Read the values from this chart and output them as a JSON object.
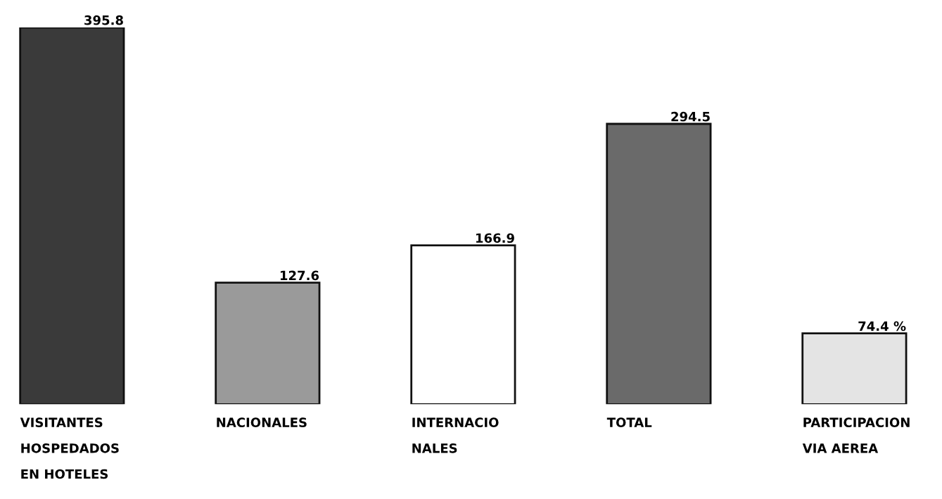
{
  "chart_data": {
    "type": "bar",
    "categories": [
      "VISITANTES\nHOSPEDADOS\nEN HOTELES",
      "NACIONALES",
      "INTERNACIO\nNALES",
      "TOTAL",
      "PARTICIPACION\nVIA AEREA"
    ],
    "values": [
      395.8,
      127.6,
      166.9,
      294.5,
      74.4
    ],
    "colors": [
      "#3a3a3a",
      "#9a9a9a",
      "#ffffff",
      "#6a6a6a",
      "#e4e4e4"
    ],
    "value_labels": [
      "395.8",
      "127.6",
      "166.9",
      "294.5",
      "74.4 %"
    ]
  }
}
